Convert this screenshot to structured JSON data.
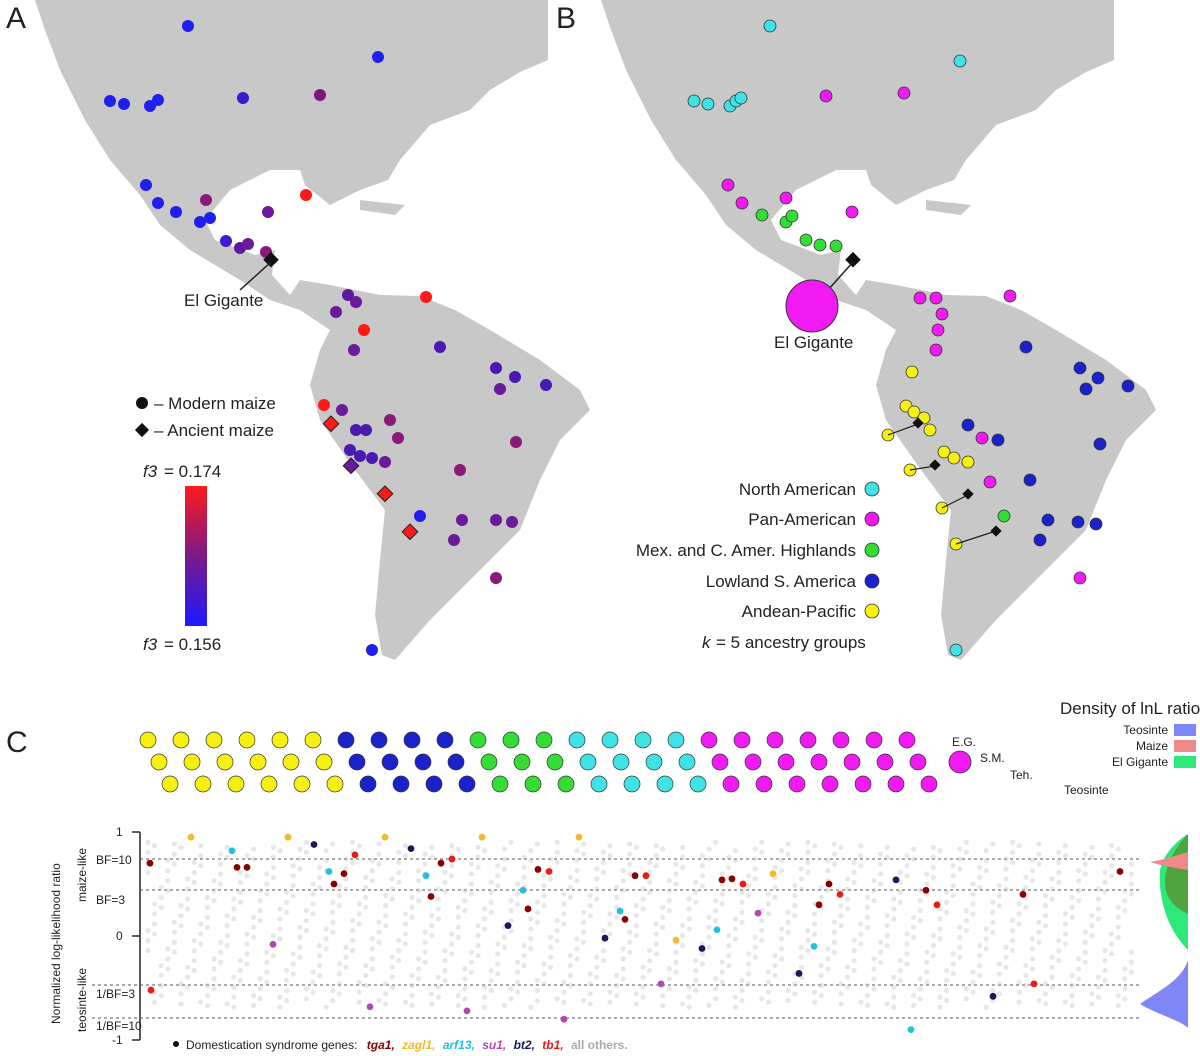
{
  "panels": {
    "A": {
      "letter": "A",
      "landmark": "El Gigante",
      "legend_modern": "– Modern maize",
      "legend_ancient": "– Ancient maize",
      "scale_top": "= 0.174",
      "scale_bottom": "= 0.156",
      "scale_var": "f3",
      "colors": {
        "low": "#1a1aff",
        "mid": "#7a1a8a",
        "high": "#ff1a1a"
      }
    },
    "B": {
      "letter": "B",
      "landmark": "El Gigante",
      "groups": [
        {
          "label": "North American",
          "color": "#3fe3e6"
        },
        {
          "label": "Pan-American",
          "color": "#f21af2"
        },
        {
          "label": "Mex. and C. Amer. Highlands",
          "color": "#33dd33"
        },
        {
          "label": "Lowland S. America",
          "color": "#1a22cc"
        },
        {
          "label": "Andean-Pacific",
          "color": "#f5f011"
        }
      ],
      "k_var": "k",
      "k_text": "= 5 ancestry groups"
    },
    "C": {
      "letter": "C",
      "label_eg": "E.G.",
      "label_sm": "S.M.",
      "label_teh": "Teh.",
      "label_teosinte": "Teosinte",
      "ylabel": "Normalized log-likelihood ratio",
      "side_top": "maize-like",
      "side_bottom": "teosinte-like",
      "thresholds": [
        "BF=10",
        "BF=3",
        "1/BF=3",
        "1/BF=10"
      ],
      "yticks": [
        "1",
        "0",
        "-1"
      ],
      "density_title": "Density of lnL ratios",
      "density_legend": [
        {
          "label": "Teosinte",
          "color": "#7f86f5"
        },
        {
          "label": "Maize",
          "color": "#f08a8a"
        },
        {
          "label": "El Gigante",
          "color": "#2ee87a"
        }
      ],
      "genes_prefix": "Domestication syndrome genes:",
      "genes": [
        {
          "label": "tga1,",
          "color": "#8b0000"
        },
        {
          "label": "zagl1,",
          "color": "#f3b92e"
        },
        {
          "label": "arf13,",
          "color": "#24c0e0"
        },
        {
          "label": "su1,",
          "color": "#b04ab0"
        },
        {
          "label": "bt2,",
          "color": "#1a1a55"
        },
        {
          "label": "tb1,",
          "color": "#e81a1a"
        },
        {
          "label": "all others.",
          "color": "#aaaaaa"
        }
      ]
    }
  },
  "chart_data": {
    "type": "scatter",
    "ylabel": "Normalized log-likelihood ratio",
    "ylim": [
      -1,
      1
    ],
    "thresholds": {
      "BF=10": 0.74,
      "BF=3": 0.56,
      "1/BF=3": -0.74,
      "1/BF=10": -0.94
    },
    "series": [
      {
        "name": "tga1",
        "values": [
          0.7,
          0.66,
          0.6,
          0.7,
          0.64,
          0.58,
          0.55,
          0.5,
          0.44,
          0.4,
          0.62,
          0.66,
          0.5,
          0.38,
          0.26,
          0.16,
          0.54,
          0.3
        ]
      },
      {
        "name": "zagl1",
        "values": [
          0.95,
          0.95,
          0.95,
          0.95,
          0.95,
          -0.04,
          0.6
        ]
      },
      {
        "name": "arf13",
        "values": [
          0.82,
          0.62,
          0.58,
          0.44,
          0.24,
          0.06,
          -0.1,
          -0.9
        ]
      },
      {
        "name": "su1",
        "values": [
          -0.08,
          -0.68,
          -0.72,
          -0.8,
          -0.46,
          0.22
        ]
      },
      {
        "name": "bt2",
        "values": [
          0.88,
          0.84,
          0.1,
          -0.02,
          -0.12,
          -0.36,
          0.54,
          -0.58
        ]
      },
      {
        "name": "tb1",
        "values": [
          0.78,
          0.74,
          0.62,
          0.58,
          0.5,
          0.4,
          0.3,
          -0.46,
          -0.52
        ]
      }
    ]
  }
}
